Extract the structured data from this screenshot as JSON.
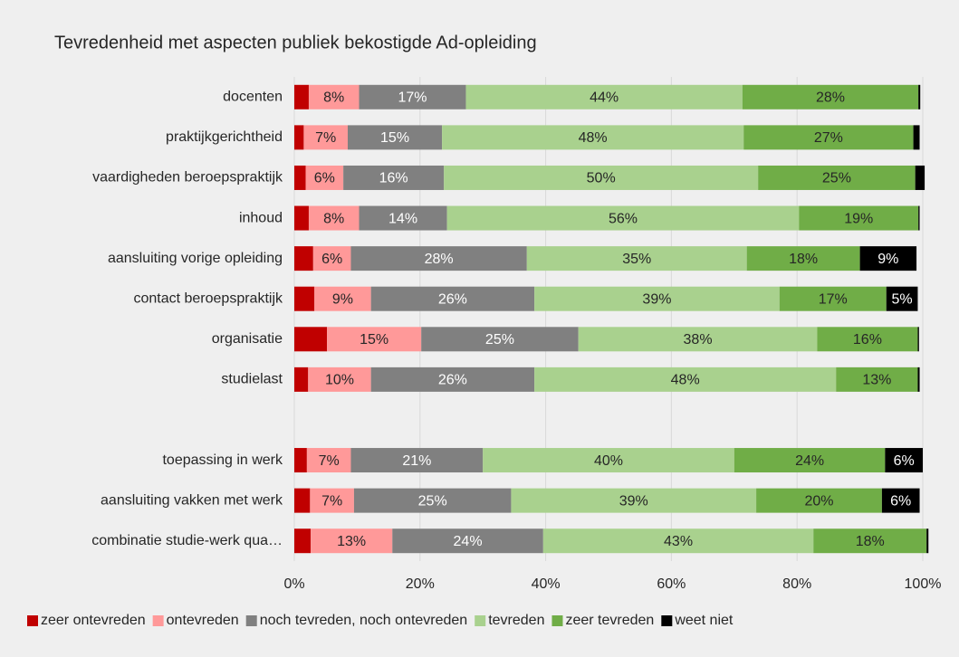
{
  "chart_data": {
    "type": "stacked_bar_horizontal",
    "title": "Tevredenheid met aspecten publiek bekostigde Ad-opleiding",
    "categories": [
      "docenten",
      "praktijkgerichtheid",
      "vaardigheden beroepspraktijk",
      "inhoud",
      "aansluiting vorige opleiding",
      "contact beroepspraktijk",
      "organisatie",
      "studielast",
      null,
      "toepassing in werk",
      "aansluiting vakken met werk",
      "combinatie studie-werk qua…"
    ],
    "series": [
      {
        "name": "zeer ontevreden",
        "color": "#c00000",
        "values": [
          2.3,
          1.5,
          1.8,
          2.3,
          3,
          3.2,
          5.2,
          2.2,
          null,
          2,
          2.5,
          2.6
        ],
        "value_labels": [
          null,
          null,
          null,
          null,
          null,
          null,
          null,
          null,
          null,
          null,
          null,
          null
        ]
      },
      {
        "name": "ontevreden",
        "color": "#ff9999",
        "values": [
          8,
          7,
          6,
          8,
          6,
          9,
          15,
          10,
          null,
          7,
          7,
          13
        ],
        "value_labels": [
          "8%",
          "7%",
          "6%",
          "8%",
          "6%",
          "9%",
          "15%",
          "10%",
          null,
          "7%",
          "7%",
          "13%"
        ]
      },
      {
        "name": "noch tevreden, noch ontevreden",
        "color": "#808080",
        "values": [
          17,
          15,
          16,
          14,
          28,
          26,
          25,
          26,
          null,
          21,
          25,
          24
        ],
        "value_labels": [
          "17%",
          "15%",
          "16%",
          "14%",
          "28%",
          "26%",
          "25%",
          "26%",
          null,
          "21%",
          "25%",
          "24%"
        ]
      },
      {
        "name": "tevreden",
        "color": "#a9d18e",
        "values": [
          44,
          48,
          50,
          56,
          35,
          39,
          38,
          48,
          null,
          40,
          39,
          43
        ],
        "value_labels": [
          "44%",
          "48%",
          "50%",
          "56%",
          "35%",
          "39%",
          "38%",
          "48%",
          null,
          "40%",
          "39%",
          "43%"
        ]
      },
      {
        "name": "zeer tevreden",
        "color": "#70ad47",
        "values": [
          28,
          27,
          25,
          19,
          18,
          17,
          16,
          13,
          null,
          24,
          20,
          18
        ],
        "value_labels": [
          "28%",
          "27%",
          "25%",
          "19%",
          "18%",
          "17%",
          "16%",
          "13%",
          null,
          "24%",
          "20%",
          "18%"
        ]
      },
      {
        "name": "weet niet",
        "color": "#000000",
        "values": [
          0.3,
          1,
          1.5,
          0.2,
          9,
          5,
          0.2,
          0.3,
          null,
          6,
          6,
          0.3
        ],
        "value_labels": [
          null,
          null,
          null,
          null,
          "9%",
          "5%",
          null,
          null,
          null,
          "6%",
          "6%",
          null
        ]
      }
    ],
    "xlim": [
      0,
      100
    ],
    "xticks": [
      {
        "value": 0,
        "label": "0%"
      },
      {
        "value": 20,
        "label": "20%"
      },
      {
        "value": 40,
        "label": "40%"
      },
      {
        "value": 60,
        "label": "60%"
      },
      {
        "value": 80,
        "label": "80%"
      },
      {
        "value": 100,
        "label": "100%"
      }
    ],
    "grid": true,
    "legend": "bottom"
  }
}
